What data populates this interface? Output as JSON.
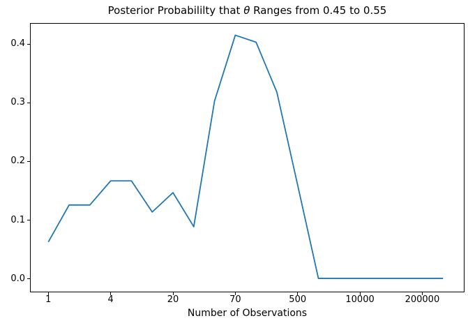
{
  "figure": {
    "title": {
      "pre": "Posterior Probabililty that ",
      "theta": "θ",
      "post": " Ranges from 0.45 to 0.55"
    },
    "xlabel": "Number of Observations"
  },
  "chart_data": {
    "type": "line",
    "title": "Posterior Probabililty that θ Ranges from 0.45 to 0.55",
    "xlabel": "Number of Observations",
    "ylabel": "",
    "grid": false,
    "legend": "none",
    "line_color": "#1f77b4",
    "axis_color": "#000000",
    "x_scale_note": "20 evenly spaced points (log-like observation counts); major ticks at every 3rd point",
    "x_index": [
      0,
      1,
      2,
      3,
      4,
      5,
      6,
      7,
      8,
      9,
      10,
      11,
      12,
      13,
      14,
      15,
      16,
      17,
      18,
      19
    ],
    "values": [
      0.063,
      0.126,
      0.126,
      0.167,
      0.167,
      0.114,
      0.147,
      0.089,
      0.303,
      0.415,
      0.403,
      0.318,
      0.16,
      0.001,
      0.001,
      0.001,
      0.001,
      0.001,
      0.001,
      0.001
    ],
    "x_tick_indices": [
      0,
      3,
      6,
      9,
      12,
      15,
      18
    ],
    "x_tick_labels": [
      "1",
      "4",
      "20",
      "70",
      "500",
      "10000",
      "200000"
    ],
    "y_ticks": [
      0.0,
      0.1,
      0.2,
      0.3,
      0.4
    ],
    "y_tick_labels": [
      "0.0",
      "0.1",
      "0.2",
      "0.3",
      "0.4"
    ],
    "xlim": [
      -0.85,
      20.0
    ],
    "ylim": [
      -0.0215,
      0.4345
    ]
  }
}
